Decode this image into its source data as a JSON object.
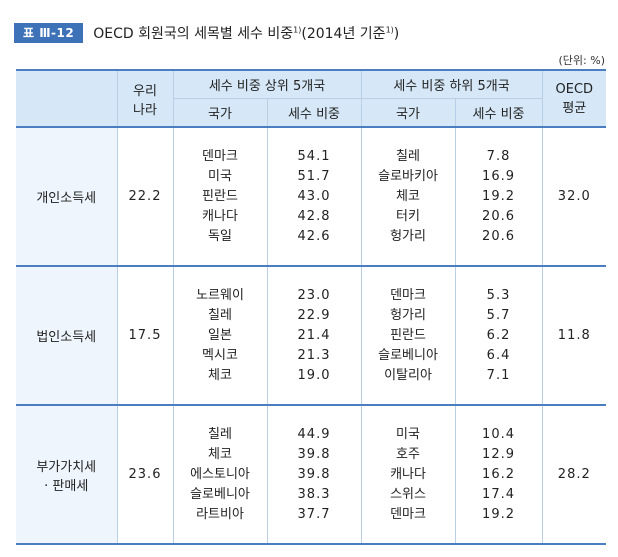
{
  "title": {
    "badge": "표 Ⅲ-12",
    "text": "OECD 회원국의 세목별 세수 비중",
    "sup1": "1)",
    "year": "(2014년 기준",
    "sup2": "1)",
    "close": ")"
  },
  "unit": "(단위: %)",
  "headers": {
    "korea": [
      "우리",
      "나라"
    ],
    "top5": "세수 비중 상위 5개국",
    "bottom5": "세수 비중 하위 5개국",
    "oecd": [
      "OECD",
      "평균"
    ],
    "country": "국가",
    "share": "세수 비중"
  },
  "rows": [
    {
      "label": [
        "개인소득세"
      ],
      "korea": "22.2",
      "top_countries": [
        "덴마크",
        "미국",
        "핀란드",
        "캐나다",
        "독일"
      ],
      "top_values": [
        "54.1",
        "51.7",
        "43.0",
        "42.8",
        "42.6"
      ],
      "bottom_countries": [
        "칠레",
        "슬로바키아",
        "체코",
        "터키",
        "헝가리"
      ],
      "bottom_values": [
        "7.8",
        "16.9",
        "19.2",
        "20.6",
        "20.6"
      ],
      "oecd": "32.0"
    },
    {
      "label": [
        "법인소득세"
      ],
      "korea": "17.5",
      "top_countries": [
        "노르웨이",
        "칠레",
        "일본",
        "멕시코",
        "체코"
      ],
      "top_values": [
        "23.0",
        "22.9",
        "21.4",
        "21.3",
        "19.0"
      ],
      "bottom_countries": [
        "덴마크",
        "헝가리",
        "핀란드",
        "슬로베니아",
        "이탈리아"
      ],
      "bottom_values": [
        "5.3",
        "5.7",
        "6.2",
        "6.4",
        "7.1"
      ],
      "oecd": "11.8"
    },
    {
      "label": [
        "부가가치세",
        "· 판매세"
      ],
      "korea": "23.6",
      "top_countries": [
        "칠레",
        "체코",
        "에스토니아",
        "슬로베니아",
        "라트비아"
      ],
      "top_values": [
        "44.9",
        "39.8",
        "39.8",
        "38.3",
        "37.7"
      ],
      "bottom_countries": [
        "미국",
        "호주",
        "캐나다",
        "스위스",
        "덴마크"
      ],
      "bottom_values": [
        "10.4",
        "12.9",
        "16.2",
        "17.4",
        "19.2"
      ],
      "oecd": "28.2"
    }
  ]
}
